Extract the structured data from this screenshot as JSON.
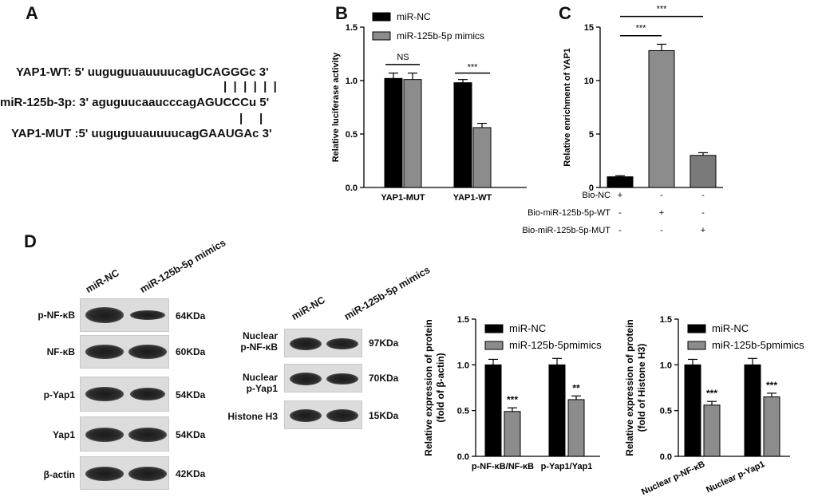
{
  "panels": {
    "A": "A",
    "B": "B",
    "C": "C",
    "D": "D"
  },
  "panel_a": {
    "wt": "YAP1-WT: 5' uuguguuauuuucagUCAGGGc 3'",
    "wt_pairs": "|  |  |  |  |  |",
    "mir": "miR-125b-3p: 3' aguguucaaucccagAGUCCCu 5'",
    "mut_pairs": "|     |",
    "mut": "YAP1-MUT :5' uuguguuauuuucagGAAUGAc 3'"
  },
  "blots_left": {
    "lanes": [
      "miR-NC",
      "miR-125b-5p mimics"
    ],
    "rows": [
      {
        "label": "p-NF-κB",
        "kda": "64KDa"
      },
      {
        "label": "NF-κB",
        "kda": "60KDa"
      },
      {
        "label": "p-Yap1",
        "kda": "54KDa"
      },
      {
        "label": "Yap1",
        "kda": "54KDa"
      },
      {
        "label": "β-actin",
        "kda": "42KDa"
      }
    ]
  },
  "blots_mid": {
    "lanes": [
      "miR-NC",
      "miR-125b-5p mimics"
    ],
    "rows": [
      {
        "label1": "Nuclear",
        "label2": "p-NF-κB",
        "kda": "97KDa"
      },
      {
        "label1": "Nuclear",
        "label2": "p-Yap1",
        "kda": "70KDa"
      },
      {
        "label1": "Histone H3",
        "label2": "",
        "kda": "15KDa"
      }
    ]
  },
  "colors": {
    "black_bar": "#000000",
    "gray_bar": "#8c8c8c",
    "mid_gray_bar": "#7a7a7a"
  },
  "chart_data": [
    {
      "id": "B",
      "type": "bar",
      "ylabel": "Relative luciferase activity",
      "ylim": [
        0,
        1.5
      ],
      "yticks": [
        "0.0",
        "0.5",
        "1.0",
        "1.5"
      ],
      "categories": [
        "YAP1-MUT",
        "YAP1-WT"
      ],
      "series": [
        {
          "name": "miR-NC",
          "values": [
            1.02,
            0.98
          ],
          "errors": [
            0.05,
            0.03
          ]
        },
        {
          "name": "miR-125b-5p mimics",
          "values": [
            1.01,
            0.56
          ],
          "errors": [
            0.06,
            0.04
          ]
        }
      ],
      "annotations": [
        "NS",
        "***"
      ],
      "legend": "top-left"
    },
    {
      "id": "C",
      "type": "bar",
      "ylabel": "Relative enrichment of YAP1",
      "ylim": [
        0,
        15
      ],
      "yticks": [
        "0",
        "5",
        "10",
        "15"
      ],
      "categories": [
        "Bio-NC",
        "Bio-miR-125b-5p-WT",
        "Bio-miR-125b-5p-MUT"
      ],
      "values": [
        1.0,
        12.8,
        3.0
      ],
      "errors": [
        0.1,
        0.6,
        0.25
      ],
      "condition_rows": [
        {
          "label": "Bio-NC",
          "marks": [
            "+",
            "-",
            "-"
          ]
        },
        {
          "label": "Bio-miR-125b-5p-WT",
          "marks": [
            "-",
            "+",
            "-"
          ]
        },
        {
          "label": "Bio-miR-125b-5p-MUT",
          "marks": [
            "-",
            "-",
            "+"
          ]
        }
      ],
      "annotations": [
        "***",
        "***"
      ]
    },
    {
      "id": "D1",
      "type": "bar",
      "ylabel": "Relative expression of protein",
      "ylabel2": "(fold of β-actin)",
      "ylim": [
        0,
        1.5
      ],
      "yticks": [
        "0.0",
        "0.5",
        "1.0",
        "1.5"
      ],
      "categories": [
        "p-NF-κB/NF-κB",
        "p-Yap1/Yap1"
      ],
      "series": [
        {
          "name": "miR-NC",
          "values": [
            1.0,
            1.0
          ],
          "errors": [
            0.06,
            0.07
          ]
        },
        {
          "name": "miR-125b-5pmimics",
          "values": [
            0.49,
            0.62
          ],
          "errors": [
            0.04,
            0.04
          ]
        }
      ],
      "annotations": [
        "***",
        "**"
      ],
      "legend": "top-right"
    },
    {
      "id": "D2",
      "type": "bar",
      "ylabel": "Relative expression of protein",
      "ylabel2": "(fold of Histone H3)",
      "ylim": [
        0,
        1.5
      ],
      "yticks": [
        "0.0",
        "0.5",
        "1.0",
        "1.5"
      ],
      "categories": [
        "Nuclear p-NF-κB",
        "Nuclear p-Yap1"
      ],
      "series": [
        {
          "name": "miR-NC",
          "values": [
            1.0,
            1.0
          ],
          "errors": [
            0.06,
            0.07
          ]
        },
        {
          "name": "miR-125b-5pmimics",
          "values": [
            0.56,
            0.65
          ],
          "errors": [
            0.04,
            0.04
          ]
        }
      ],
      "annotations": [
        "***",
        "***"
      ],
      "legend": "top-right"
    }
  ]
}
